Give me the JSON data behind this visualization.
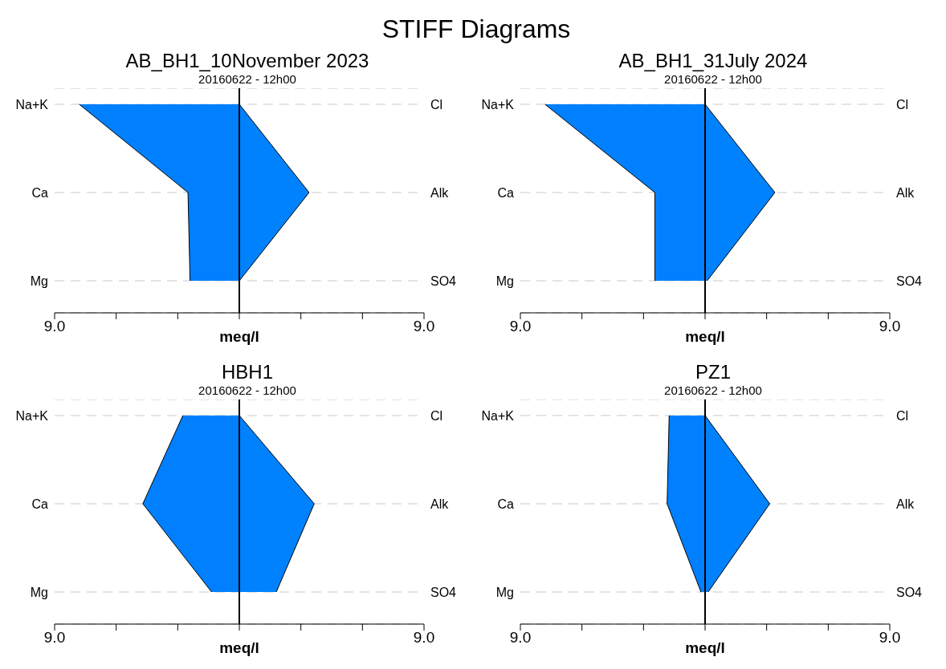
{
  "chart_data": [
    {
      "type": "area",
      "orientation": "horizontal",
      "title": "AB_BH1_10November 2023",
      "subtitle": "20160622 - 12h00",
      "annotations": [
        "STIFF Diagrams"
      ],
      "xlabel": "meq/l",
      "categories": [
        "Na+K",
        "Ca",
        "Mg"
      ],
      "y2_categories": [
        "Cl",
        "Alk",
        "SO4"
      ],
      "xlim": [
        -9,
        9
      ],
      "xticks": [
        {
          "value": -9,
          "label": "9.0"
        },
        {
          "value": -6,
          "label": null
        },
        {
          "value": -3,
          "label": null
        },
        {
          "value": 0,
          "label": null
        },
        {
          "value": 3,
          "label": null
        },
        {
          "value": 6,
          "label": null
        },
        {
          "value": 9,
          "label": "9.0"
        }
      ],
      "grid": "y",
      "ref_lines": [
        {
          "axis": "x",
          "value": 0,
          "color": "#000000"
        }
      ],
      "series": [
        {
          "color": "#0080ff",
          "values": [
            -7.8,
            -2.5,
            -2.4
          ]
        },
        {
          "color": "#0082ff",
          "values": [
            0,
            3.4,
            0
          ]
        }
      ]
    },
    {
      "type": "area",
      "orientation": "horizontal",
      "title": "AB_BH1_31July 2024",
      "subtitle": "20160622 - 12h00",
      "xlabel": "meq/l",
      "categories": [
        "Na+K",
        "Ca",
        "Mg"
      ],
      "y2_categories": [
        "Cl",
        "Alk",
        "SO4"
      ],
      "xlim": [
        -9,
        9
      ],
      "xticks": [
        {
          "value": -9,
          "label": "9.0"
        },
        {
          "value": -6,
          "label": null
        },
        {
          "value": -3,
          "label": null
        },
        {
          "value": 0,
          "label": null
        },
        {
          "value": 3,
          "label": null
        },
        {
          "value": 6,
          "label": null
        },
        {
          "value": 9,
          "label": "9.0"
        }
      ],
      "grid": "y",
      "ref_lines": [
        {
          "axis": "x",
          "value": 0,
          "color": "#000000"
        }
      ],
      "series": [
        {
          "color": "#0080ff",
          "values": [
            -7.8,
            -2.45,
            -2.45
          ]
        },
        {
          "color": "#0082ff",
          "values": [
            0,
            3.4,
            0.1
          ]
        }
      ]
    },
    {
      "type": "area",
      "orientation": "horizontal",
      "title": "HBH1",
      "subtitle": "20160622 - 12h00",
      "xlabel": "meq/l",
      "categories": [
        "Na+K",
        "Ca",
        "Mg"
      ],
      "y2_categories": [
        "Cl",
        "Alk",
        "SO4"
      ],
      "xlim": [
        -9,
        9
      ],
      "xticks": [
        {
          "value": -9,
          "label": "9.0"
        },
        {
          "value": -6,
          "label": null
        },
        {
          "value": -3,
          "label": null
        },
        {
          "value": 0,
          "label": null
        },
        {
          "value": 3,
          "label": null
        },
        {
          "value": 6,
          "label": null
        },
        {
          "value": 9,
          "label": "9.0"
        }
      ],
      "grid": "y",
      "ref_lines": [
        {
          "axis": "x",
          "value": 0,
          "color": "#000000"
        }
      ],
      "series": [
        {
          "color": "#0080ff",
          "values": [
            -2.75,
            -4.7,
            -1.35
          ]
        },
        {
          "color": "#0082ff",
          "values": [
            0,
            3.65,
            1.8
          ]
        }
      ]
    },
    {
      "type": "area",
      "orientation": "horizontal",
      "title": "PZ1",
      "subtitle": "20160622 - 12h00",
      "xlabel": "meq/l",
      "categories": [
        "Na+K",
        "Ca",
        "Mg"
      ],
      "y2_categories": [
        "Cl",
        "Alk",
        "SO4"
      ],
      "xlim": [
        -9,
        9
      ],
      "xticks": [
        {
          "value": -9,
          "label": "9.0"
        },
        {
          "value": -6,
          "label": null
        },
        {
          "value": -3,
          "label": null
        },
        {
          "value": 0,
          "label": null
        },
        {
          "value": 3,
          "label": null
        },
        {
          "value": 6,
          "label": null
        },
        {
          "value": 9,
          "label": "9.0"
        }
      ],
      "grid": "y",
      "ref_lines": [
        {
          "axis": "x",
          "value": 0,
          "color": "#000000"
        }
      ],
      "series": [
        {
          "color": "#0080ff",
          "values": [
            -1.75,
            -1.85,
            -0.2
          ]
        },
        {
          "color": "#0082ff",
          "values": [
            0,
            3.15,
            0.15
          ]
        }
      ]
    }
  ]
}
